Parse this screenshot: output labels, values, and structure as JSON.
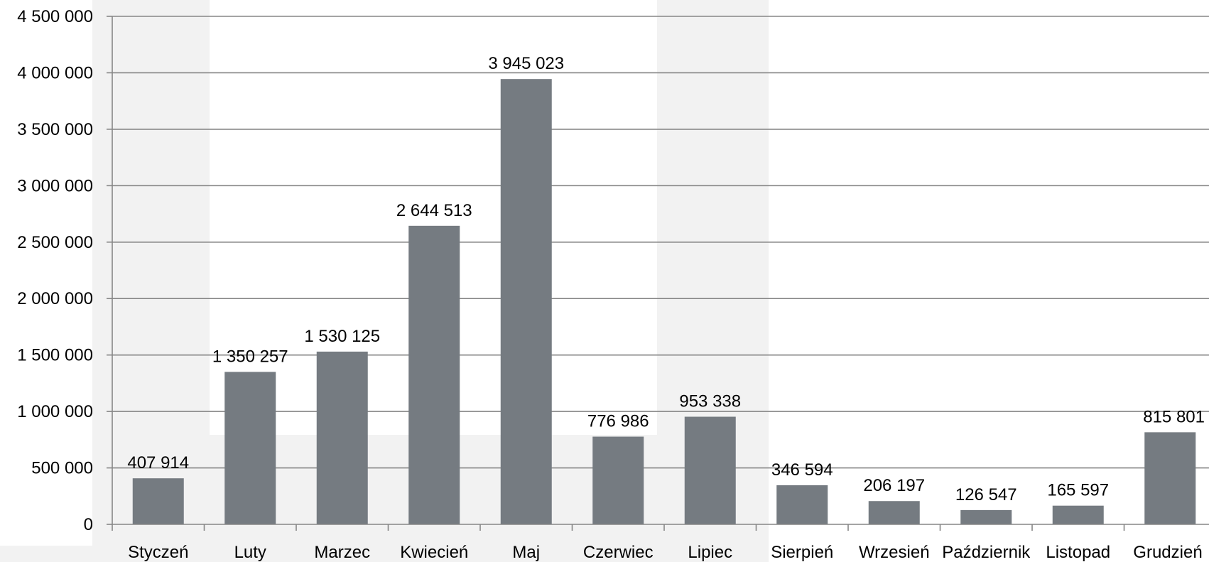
{
  "chart_data": {
    "type": "bar",
    "title": "",
    "xlabel": "",
    "ylabel": "",
    "categories": [
      "Styczeń",
      "Luty",
      "Marzec",
      "Kwiecień",
      "Maj",
      "Czerwiec",
      "Lipiec",
      "Sierpień",
      "Wrzesień",
      "Październik",
      "Listopad",
      "Grudzień"
    ],
    "values": [
      407914,
      1350257,
      1530125,
      2644513,
      3945023,
      776986,
      953338,
      346594,
      206197,
      126547,
      165597,
      815801
    ],
    "value_labels": [
      "407 914",
      "1 350 257",
      "1 530 125",
      "2 644 513",
      "3 945 023",
      "776 986",
      "953 338",
      "346 594",
      "206 197",
      "126 547",
      "165 597",
      "815 801"
    ],
    "ylim": [
      0,
      4500000
    ],
    "yticks": [
      0,
      500000,
      1000000,
      1500000,
      2000000,
      2500000,
      3000000,
      3500000,
      4000000,
      4500000
    ],
    "ytick_labels": [
      "0",
      "500 000",
      "1 000 000",
      "1 500 000",
      "2 000 000",
      "2 500 000",
      "3 000 000",
      "3 500 000",
      "4 000 000",
      "4 500 000"
    ],
    "grid": true,
    "legend": "none",
    "bar_color": "#757b81",
    "grid_color": "#868686",
    "background_shade_color": "#f2f2f2"
  }
}
